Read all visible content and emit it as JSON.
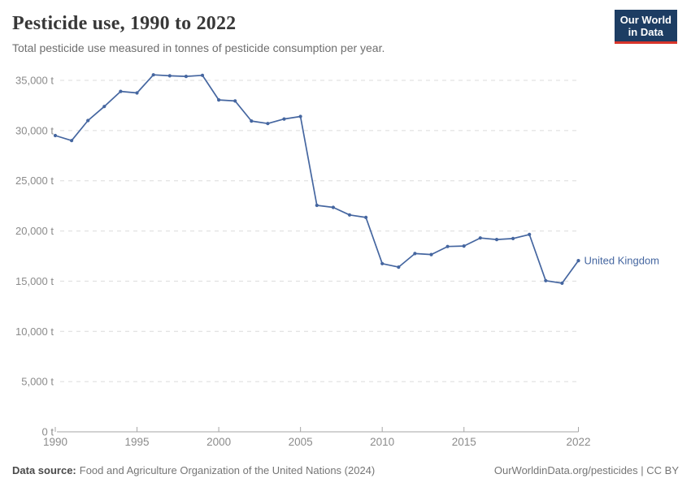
{
  "header": {
    "title": "Pesticide use, 1990 to 2022",
    "subtitle": "Total pesticide use measured in tonnes of pesticide consumption per year."
  },
  "logo": {
    "line1": "Our World",
    "line2": "in Data",
    "bg_color": "#1d3d63",
    "accent_color": "#d8352a"
  },
  "chart_data": {
    "type": "line",
    "title": "Pesticide use, 1990 to 2022",
    "subtitle": "Total pesticide use measured in tonnes of pesticide consumption per year.",
    "unit": "t",
    "xlabel": "",
    "ylabel": "",
    "ylim": [
      0,
      35000
    ],
    "yticks": [
      0,
      5000,
      10000,
      15000,
      20000,
      25000,
      30000,
      35000
    ],
    "xticks": [
      1990,
      1995,
      2000,
      2005,
      2010,
      2015,
      2022
    ],
    "grid": "horizontal-dashed",
    "legend_position": "end-of-line-label",
    "axis_color": "#a6a6a6",
    "grid_color": "#dcdcdc",
    "tick_label_color": "#8b8b8b",
    "x": [
      1990,
      1991,
      1992,
      1993,
      1994,
      1995,
      1996,
      1997,
      1998,
      1999,
      2000,
      2001,
      2002,
      2003,
      2004,
      2005,
      2006,
      2007,
      2008,
      2009,
      2010,
      2011,
      2012,
      2013,
      2014,
      2015,
      2016,
      2017,
      2018,
      2019,
      2020,
      2021,
      2022
    ],
    "series": [
      {
        "name": "United Kingdom",
        "color": "#4566a0",
        "values": [
          29500,
          29000,
          31000,
          32400,
          33900,
          33750,
          35550,
          35450,
          35400,
          35500,
          33050,
          32950,
          30950,
          30700,
          31150,
          31400,
          22550,
          22350,
          21600,
          21350,
          16750,
          16400,
          17750,
          17650,
          18450,
          18500,
          19300,
          19150,
          19250,
          19650,
          15050,
          14800,
          17050
        ]
      }
    ]
  },
  "footer": {
    "source_label": "Data source:",
    "source_text": "Food and Agriculture Organization of the United Nations (2024)",
    "right_text": "OurWorldinData.org/pesticides | CC BY"
  }
}
